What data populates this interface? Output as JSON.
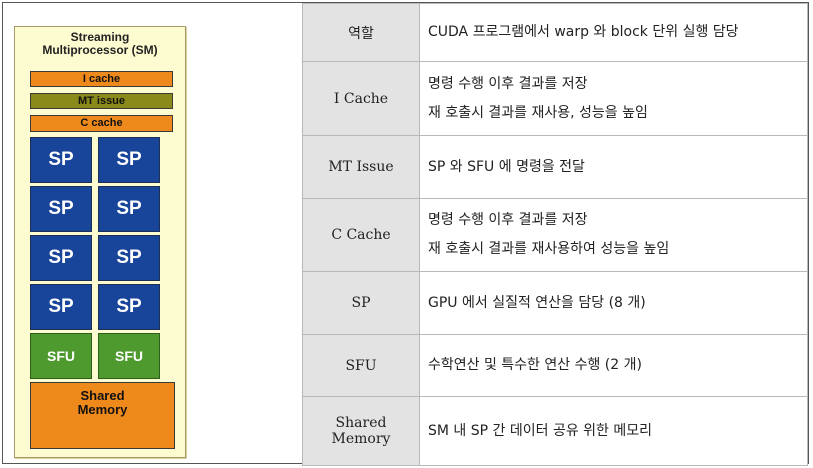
{
  "sm": {
    "title_line1": "Streaming",
    "title_line2": "Multiprocessor (SM)",
    "icache": "I cache",
    "mt_issue": "MT issue",
    "ccache": "C cache",
    "sp_label": "SP",
    "sfu_label": "SFU",
    "shared_line1": "Shared",
    "shared_line2": "Memory",
    "colors": {
      "panel": "#fdfbd0",
      "orange": "#ee8a1c",
      "olive": "#8a8a1a",
      "sp_blue": "#18449a",
      "sfu_green": "#4f9a2f"
    }
  },
  "table": {
    "rows": [
      {
        "head": [
          "역할"
        ],
        "desc": [
          "CUDA 프로그램에서 warp 와 block 단위 실행 담당"
        ]
      },
      {
        "head": [
          "I Cache"
        ],
        "desc": [
          "명령 수행 이후 결과를 저장",
          "재 호출시 결과를 재사용, 성능을 높임"
        ]
      },
      {
        "head": [
          "MT Issue"
        ],
        "desc": [
          "SP 와 SFU 에 명령을 전달"
        ]
      },
      {
        "head": [
          "C Cache"
        ],
        "desc": [
          "명령 수행 이후 결과를 저장",
          "재 호출시 결과를 재사용하여 성능을 높임"
        ]
      },
      {
        "head": [
          "SP"
        ],
        "desc": [
          "GPU 에서 실질적 연산을 담당 (8 개)"
        ]
      },
      {
        "head": [
          "SFU"
        ],
        "desc": [
          "수학연산 및 특수한 연산 수행 (2 개)"
        ]
      },
      {
        "head": [
          "Shared",
          "Memory"
        ],
        "desc": [
          "SM 내 SP 간 데이터 공유 위한 메모리"
        ]
      }
    ]
  }
}
